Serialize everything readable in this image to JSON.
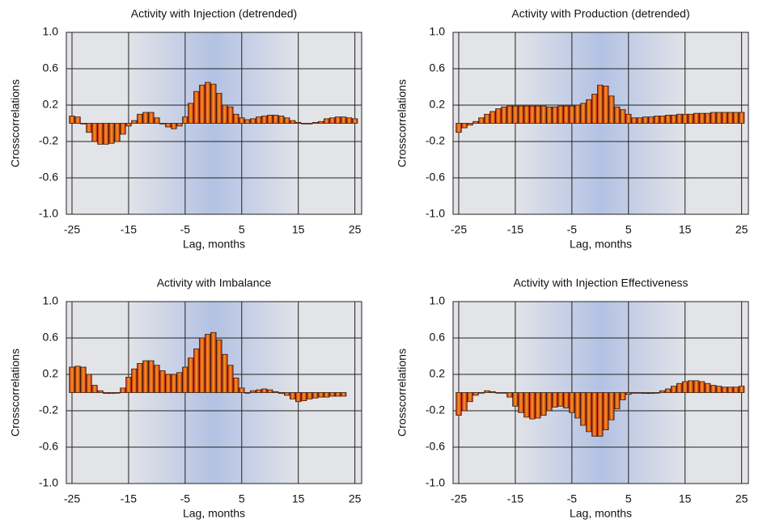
{
  "chart_data": [
    {
      "type": "bar",
      "title": "Activity with Injection (detrended)",
      "xlabel": "Lag, months",
      "ylabel": "Crosscorrelations",
      "color": "#f39a1c",
      "x": [
        -25,
        -24,
        -23,
        -22,
        -21,
        -20,
        -19,
        -18,
        -17,
        -16,
        -15,
        -14,
        -13,
        -12,
        -11,
        -10,
        -9,
        -8,
        -7,
        -6,
        -5,
        -4,
        -3,
        -2,
        -1,
        0,
        1,
        2,
        3,
        4,
        5,
        6,
        7,
        8,
        9,
        10,
        11,
        12,
        13,
        14,
        15,
        16,
        17,
        18,
        19,
        20,
        21,
        22,
        23,
        24,
        25
      ],
      "values": [
        0.08,
        0.07,
        0,
        -0.1,
        -0.2,
        -0.23,
        -0.23,
        -0.22,
        -0.2,
        -0.12,
        -0.03,
        0.03,
        0.1,
        0.12,
        0.12,
        0.06,
        0,
        -0.04,
        -0.06,
        -0.03,
        0.07,
        0.22,
        0.35,
        0.42,
        0.45,
        0.43,
        0.33,
        0.2,
        0.18,
        0.1,
        0.06,
        0.04,
        0.05,
        0.07,
        0.08,
        0.09,
        0.09,
        0.08,
        0.06,
        0.03,
        0.01,
        0,
        0,
        0.01,
        0.02,
        0.05,
        0.06,
        0.07,
        0.07,
        0.06,
        0.05
      ],
      "xlim": [
        -26,
        26.2
      ],
      "ylim": [
        -1,
        1
      ],
      "xticks": [
        -25,
        -15,
        -5,
        5,
        15,
        25
      ],
      "yticks": [
        {
          "value": -1,
          "label": "-1.0"
        },
        -0.6,
        -0.2,
        0.2,
        0.6,
        {
          "value": 1,
          "label": "1.0"
        }
      ],
      "grid": true
    },
    {
      "type": "bar",
      "title": "Activity with Production (detrended)",
      "xlabel": "Lag, months",
      "ylabel": "Crosscorrelations",
      "color": "#f39a1c",
      "x": [
        -25,
        -24,
        -23,
        -22,
        -21,
        -20,
        -19,
        -18,
        -17,
        -16,
        -15,
        -14,
        -13,
        -12,
        -11,
        -10,
        -9,
        -8,
        -7,
        -6,
        -5,
        -4,
        -3,
        -2,
        -1,
        0,
        1,
        2,
        3,
        4,
        5,
        6,
        7,
        8,
        9,
        10,
        11,
        12,
        13,
        14,
        15,
        16,
        17,
        18,
        19,
        20,
        21,
        22,
        23,
        24,
        25
      ],
      "values": [
        -0.1,
        -0.05,
        -0.02,
        0.02,
        0.06,
        0.1,
        0.13,
        0.16,
        0.18,
        0.19,
        0.19,
        0.19,
        0.19,
        0.19,
        0.19,
        0.19,
        0.18,
        0.18,
        0.19,
        0.19,
        0.19,
        0.2,
        0.22,
        0.26,
        0.32,
        0.42,
        0.41,
        0.3,
        0.18,
        0.15,
        0.1,
        0.06,
        0.06,
        0.07,
        0.07,
        0.08,
        0.08,
        0.09,
        0.09,
        0.1,
        0.1,
        0.1,
        0.11,
        0.11,
        0.11,
        0.12,
        0.12,
        0.12,
        0.12,
        0.12,
        0.12
      ],
      "xlim": [
        -26,
        26.2
      ],
      "ylim": [
        -1,
        1
      ],
      "xticks": [
        -25,
        -15,
        -5,
        5,
        15,
        25
      ],
      "yticks": [
        {
          "value": -1,
          "label": "-1.0"
        },
        -0.6,
        -0.2,
        0.2,
        0.6,
        {
          "value": 1,
          "label": "1.0"
        }
      ],
      "grid": true
    },
    {
      "type": "bar",
      "title": "Activity with Imbalance",
      "xlabel": "Lag, months",
      "ylabel": "Crosscorrelations",
      "color": "#f39a1c",
      "x": [
        -25,
        -24,
        -23,
        -22,
        -21,
        -20,
        -19,
        -18,
        -17,
        -16,
        -15,
        -14,
        -13,
        -12,
        -11,
        -10,
        -9,
        -8,
        -7,
        -6,
        -5,
        -4,
        -3,
        -2,
        -1,
        0,
        1,
        2,
        3,
        4,
        5,
        6,
        7,
        8,
        9,
        10,
        11,
        12,
        13,
        14,
        15,
        16,
        17,
        18,
        19,
        20,
        21,
        22,
        23
      ],
      "values": [
        0.28,
        0.29,
        0.28,
        0.2,
        0.08,
        0.02,
        -0.01,
        -0.01,
        0,
        0.05,
        0.17,
        0.26,
        0.32,
        0.35,
        0.35,
        0.3,
        0.24,
        0.2,
        0.2,
        0.22,
        0.28,
        0.38,
        0.48,
        0.6,
        0.64,
        0.66,
        0.58,
        0.42,
        0.3,
        0.16,
        0.05,
        0,
        0.02,
        0.03,
        0.04,
        0.03,
        0.01,
        -0.01,
        -0.03,
        -0.07,
        -0.1,
        -0.09,
        -0.07,
        -0.06,
        -0.05,
        -0.05,
        -0.04,
        -0.04,
        -0.04
      ],
      "xlim": [
        -26,
        26.2
      ],
      "ylim": [
        -1,
        1
      ],
      "xticks": [
        -25,
        -15,
        -5,
        5,
        15,
        25
      ],
      "yticks": [
        {
          "value": -1,
          "label": "-1.0"
        },
        -0.6,
        -0.2,
        0.2,
        0.6,
        {
          "value": 1,
          "label": "1.0"
        }
      ],
      "grid": true
    },
    {
      "type": "bar",
      "title": "Activity with Injection Effectiveness",
      "xlabel": "Lag, months",
      "ylabel": "Crosscorrelations",
      "color": "#f39a1c",
      "x": [
        -25,
        -24,
        -23,
        -22,
        -21,
        -20,
        -19,
        -18,
        -17,
        -16,
        -15,
        -14,
        -13,
        -12,
        -11,
        -10,
        -9,
        -8,
        -7,
        -6,
        -5,
        -4,
        -3,
        -2,
        -1,
        0,
        1,
        2,
        3,
        4,
        5,
        6,
        7,
        8,
        9,
        10,
        11,
        12,
        13,
        14,
        15,
        16,
        17,
        18,
        19,
        20,
        21,
        22,
        23,
        24,
        25
      ],
      "values": [
        -0.25,
        -0.2,
        -0.1,
        -0.03,
        0,
        0.02,
        0.01,
        0,
        0,
        -0.05,
        -0.15,
        -0.22,
        -0.27,
        -0.29,
        -0.28,
        -0.25,
        -0.2,
        -0.16,
        -0.15,
        -0.17,
        -0.22,
        -0.28,
        -0.36,
        -0.43,
        -0.48,
        -0.48,
        -0.41,
        -0.3,
        -0.18,
        -0.08,
        -0.02,
        0,
        0,
        -0.01,
        -0.01,
        0,
        0.02,
        0.04,
        0.07,
        0.1,
        0.12,
        0.13,
        0.13,
        0.12,
        0.1,
        0.08,
        0.07,
        0.06,
        0.06,
        0.06,
        0.07
      ],
      "xlim": [
        -26,
        26.2
      ],
      "ylim": [
        -1,
        1
      ],
      "xticks": [
        -25,
        -15,
        -5,
        5,
        15,
        25
      ],
      "yticks": [
        {
          "value": -1,
          "label": "-1.0"
        },
        -0.6,
        -0.2,
        0.2,
        0.6,
        {
          "value": 1,
          "label": "1.0"
        }
      ],
      "grid": true
    }
  ]
}
